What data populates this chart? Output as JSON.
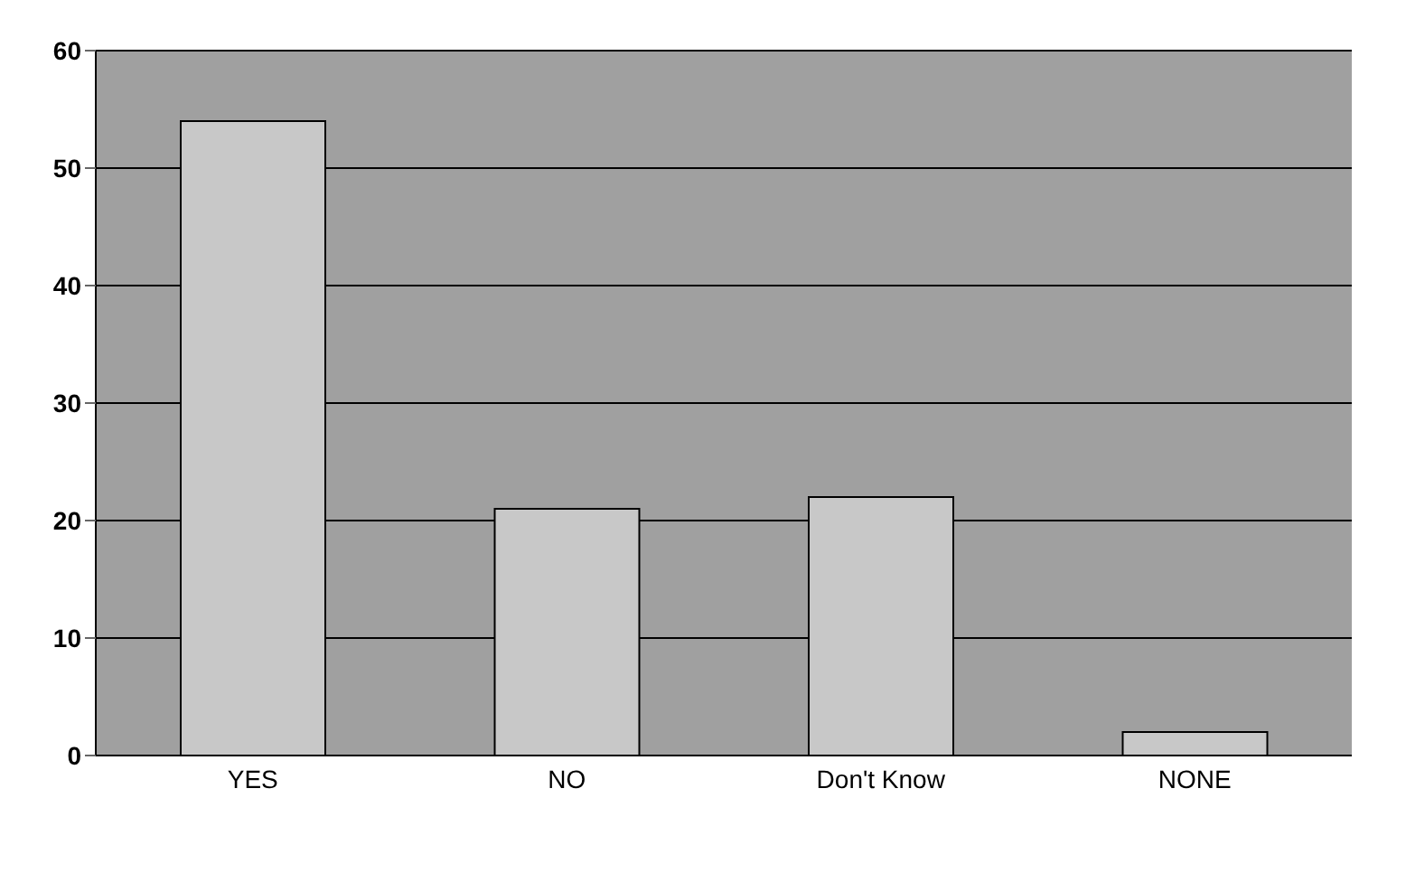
{
  "chart_data": {
    "type": "bar",
    "categories": [
      "YES",
      "NO",
      "Don't Know",
      "NONE"
    ],
    "values": [
      54,
      21,
      22,
      2
    ],
    "color": "#c8c8c8",
    "ylim": [
      0,
      60
    ],
    "yticks": [
      0,
      10,
      20,
      30,
      40,
      50,
      60
    ],
    "grid": "y"
  }
}
